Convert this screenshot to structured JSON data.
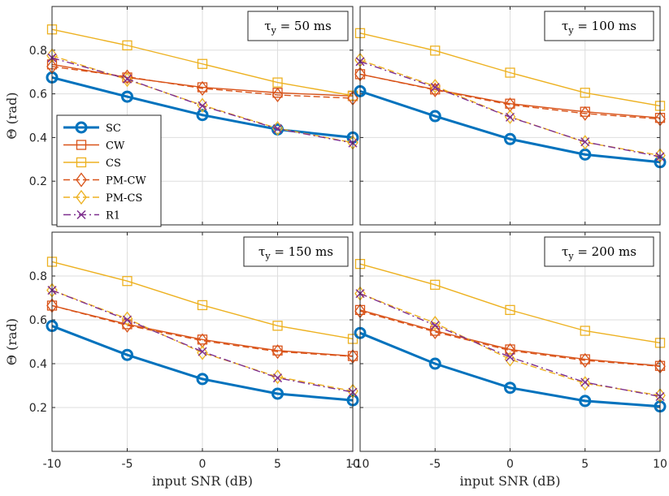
{
  "chart_data": {
    "type": "line",
    "x": [
      -10,
      -5,
      0,
      5,
      10
    ],
    "xlim": [
      -10,
      10
    ],
    "ylim": [
      0,
      1
    ],
    "xticks": [
      "-10",
      "-5",
      "0",
      "5",
      "10"
    ],
    "yticks": [
      "0.2",
      "0.4",
      "0.6",
      "0.8"
    ],
    "grid": true,
    "xlabel": "input SNR (dB)",
    "ylabel": "Θ (rad)",
    "legend": {
      "placement": "left (in top-left panel)",
      "entries": [
        "SC",
        "CW",
        "CS",
        "PM-CW",
        "PM-CS",
        "R1"
      ]
    },
    "series_styles": [
      {
        "name": "SC",
        "color": "#0072BD",
        "marker": "circle",
        "dash": "solid",
        "thick": true
      },
      {
        "name": "CW",
        "color": "#D95319",
        "marker": "square",
        "dash": "solid",
        "thick": false
      },
      {
        "name": "CS",
        "color": "#EDB120",
        "marker": "square",
        "dash": "solid",
        "thick": false
      },
      {
        "name": "PM-CW",
        "color": "#D95319",
        "marker": "diamond",
        "dash": "dashed",
        "thick": false
      },
      {
        "name": "PM-CS",
        "color": "#EDB120",
        "marker": "diamond",
        "dash": "dashed",
        "thick": false
      },
      {
        "name": "R1",
        "color": "#7E2F8E",
        "marker": "x",
        "dash": "dashdot",
        "thick": false
      }
    ],
    "panels": [
      {
        "annotation": {
          "prefix": "τ",
          "sub": "y",
          "suffix": " = 50 ms"
        },
        "series": [
          {
            "name": "SC",
            "values": [
              0.675,
              0.587,
              0.503,
              0.437,
              0.4
            ]
          },
          {
            "name": "CW",
            "values": [
              0.735,
              0.675,
              0.63,
              0.605,
              0.59
            ]
          },
          {
            "name": "CS",
            "values": [
              0.895,
              0.822,
              0.737,
              0.652,
              0.592
            ]
          },
          {
            "name": "PM-CW",
            "values": [
              0.725,
              0.678,
              0.625,
              0.595,
              0.58
            ]
          },
          {
            "name": "PM-CS",
            "values": [
              0.775,
              0.665,
              0.548,
              0.442,
              0.377
            ]
          },
          {
            "name": "R1",
            "values": [
              0.765,
              0.668,
              0.545,
              0.44,
              0.375
            ]
          }
        ]
      },
      {
        "annotation": {
          "prefix": "τ",
          "sub": "y",
          "suffix": " = 100 ms"
        },
        "series": [
          {
            "name": "SC",
            "values": [
              0.612,
              0.498,
              0.393,
              0.322,
              0.287
            ]
          },
          {
            "name": "CW",
            "values": [
              0.69,
              0.62,
              0.555,
              0.518,
              0.49
            ]
          },
          {
            "name": "CS",
            "values": [
              0.878,
              0.798,
              0.697,
              0.605,
              0.545
            ]
          },
          {
            "name": "PM-CW",
            "values": [
              0.69,
              0.618,
              0.55,
              0.51,
              0.485
            ]
          },
          {
            "name": "PM-CS",
            "values": [
              0.755,
              0.635,
              0.495,
              0.378,
              0.318
            ]
          },
          {
            "name": "R1",
            "values": [
              0.748,
              0.63,
              0.493,
              0.38,
              0.312
            ]
          }
        ]
      },
      {
        "annotation": {
          "prefix": "τ",
          "sub": "y",
          "suffix": " = 150 ms"
        },
        "series": [
          {
            "name": "SC",
            "values": [
              0.572,
              0.44,
              0.33,
              0.263,
              0.233
            ]
          },
          {
            "name": "CW",
            "values": [
              0.665,
              0.58,
              0.51,
              0.46,
              0.435
            ]
          },
          {
            "name": "CS",
            "values": [
              0.865,
              0.777,
              0.667,
              0.573,
              0.513
            ]
          },
          {
            "name": "PM-CW",
            "values": [
              0.665,
              0.575,
              0.505,
              0.455,
              0.433
            ]
          },
          {
            "name": "PM-CS",
            "values": [
              0.735,
              0.605,
              0.45,
              0.34,
              0.275
            ]
          },
          {
            "name": "R1",
            "values": [
              0.735,
              0.6,
              0.455,
              0.335,
              0.27
            ]
          }
        ]
      },
      {
        "annotation": {
          "prefix": "τ",
          "sub": "y",
          "suffix": " = 200 ms"
        },
        "series": [
          {
            "name": "SC",
            "values": [
              0.54,
              0.4,
              0.29,
              0.23,
              0.205
            ]
          },
          {
            "name": "CW",
            "values": [
              0.645,
              0.55,
              0.465,
              0.42,
              0.39
            ]
          },
          {
            "name": "CS",
            "values": [
              0.855,
              0.76,
              0.645,
              0.55,
              0.495
            ]
          },
          {
            "name": "PM-CW",
            "values": [
              0.64,
              0.545,
              0.46,
              0.415,
              0.388
            ]
          },
          {
            "name": "PM-CS",
            "values": [
              0.72,
              0.585,
              0.42,
              0.31,
              0.255
            ]
          },
          {
            "name": "R1",
            "values": [
              0.72,
              0.575,
              0.43,
              0.315,
              0.25
            ]
          }
        ]
      }
    ]
  }
}
